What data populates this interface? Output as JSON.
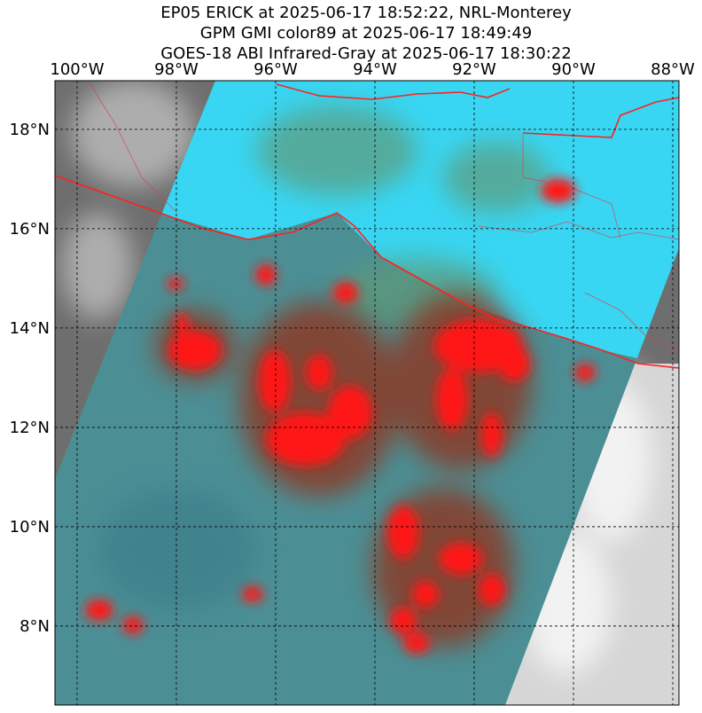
{
  "header": {
    "lines": [
      "EP05 ERICK at 2025-06-17 18:52:22, NRL-Monterey",
      "GPM GMI color89 at 2025-06-17 18:49:49",
      "GOES-18 ABI Infrared-Gray at 2025-06-17 18:30:22"
    ]
  },
  "map": {
    "xlim": [
      -100.446,
      -87.875
    ],
    "ylim": [
      6.41,
      18.98
    ],
    "xticks": [
      {
        "value": -100,
        "label": "100°W"
      },
      {
        "value": -98,
        "label": "98°W"
      },
      {
        "value": -96,
        "label": "96°W"
      },
      {
        "value": -94,
        "label": "94°W"
      },
      {
        "value": -92,
        "label": "92°W"
      },
      {
        "value": -90,
        "label": "90°W"
      },
      {
        "value": -88,
        "label": "88°W"
      }
    ],
    "yticks": [
      {
        "value": 8,
        "label": "8°N"
      },
      {
        "value": 10,
        "label": "10°N"
      },
      {
        "value": 12,
        "label": "12°N"
      },
      {
        "value": 14,
        "label": "14°N"
      },
      {
        "value": 16,
        "label": "16°N"
      },
      {
        "value": 18,
        "label": "18°N"
      }
    ]
  }
}
